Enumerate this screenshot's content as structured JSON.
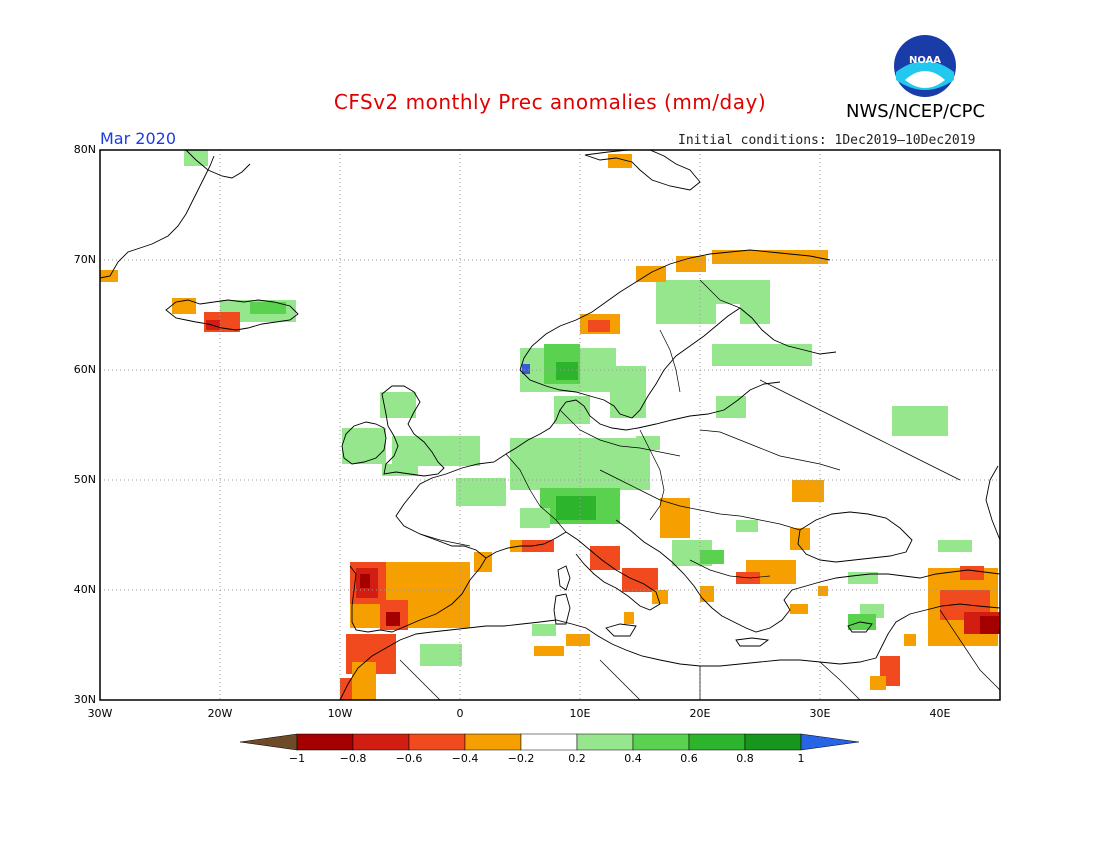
{
  "title": "CFSv2 monthly Prec anomalies (mm/day)",
  "agency": "NWS/NCEP/CPC",
  "logo_text": "NOAA",
  "month": "Mar 2020",
  "initial_conditions": "Initial conditions: 1Dec2019—10Dec2019",
  "lat_labels": [
    "80N",
    "70N",
    "60N",
    "50N",
    "40N",
    "30N"
  ],
  "lon_labels": [
    "30W",
    "20W",
    "10W",
    "0",
    "10E",
    "20E",
    "30E",
    "40E"
  ],
  "colorbar": {
    "labels": [
      "−1",
      "−0.8",
      "−0.6",
      "−0.4",
      "−0.2",
      "0.2",
      "0.4",
      "0.6",
      "0.8",
      "1"
    ],
    "colors": [
      "#6e4a28",
      "#a50000",
      "#d21e12",
      "#f04a1e",
      "#f5a000",
      "#ffffff",
      "#95e68c",
      "#5ad250",
      "#2db42d",
      "#17961e",
      "#2864e6"
    ]
  },
  "colors": {
    "dry_strong": "#d21e12",
    "dry_mod": "#f04a1e",
    "dry_weak": "#f5a000",
    "dry_very": "#a50000",
    "wet_weak": "#95e68c",
    "wet_mod": "#5ad250",
    "wet_strong": "#2db42d",
    "wet_very": "#17961e"
  }
}
